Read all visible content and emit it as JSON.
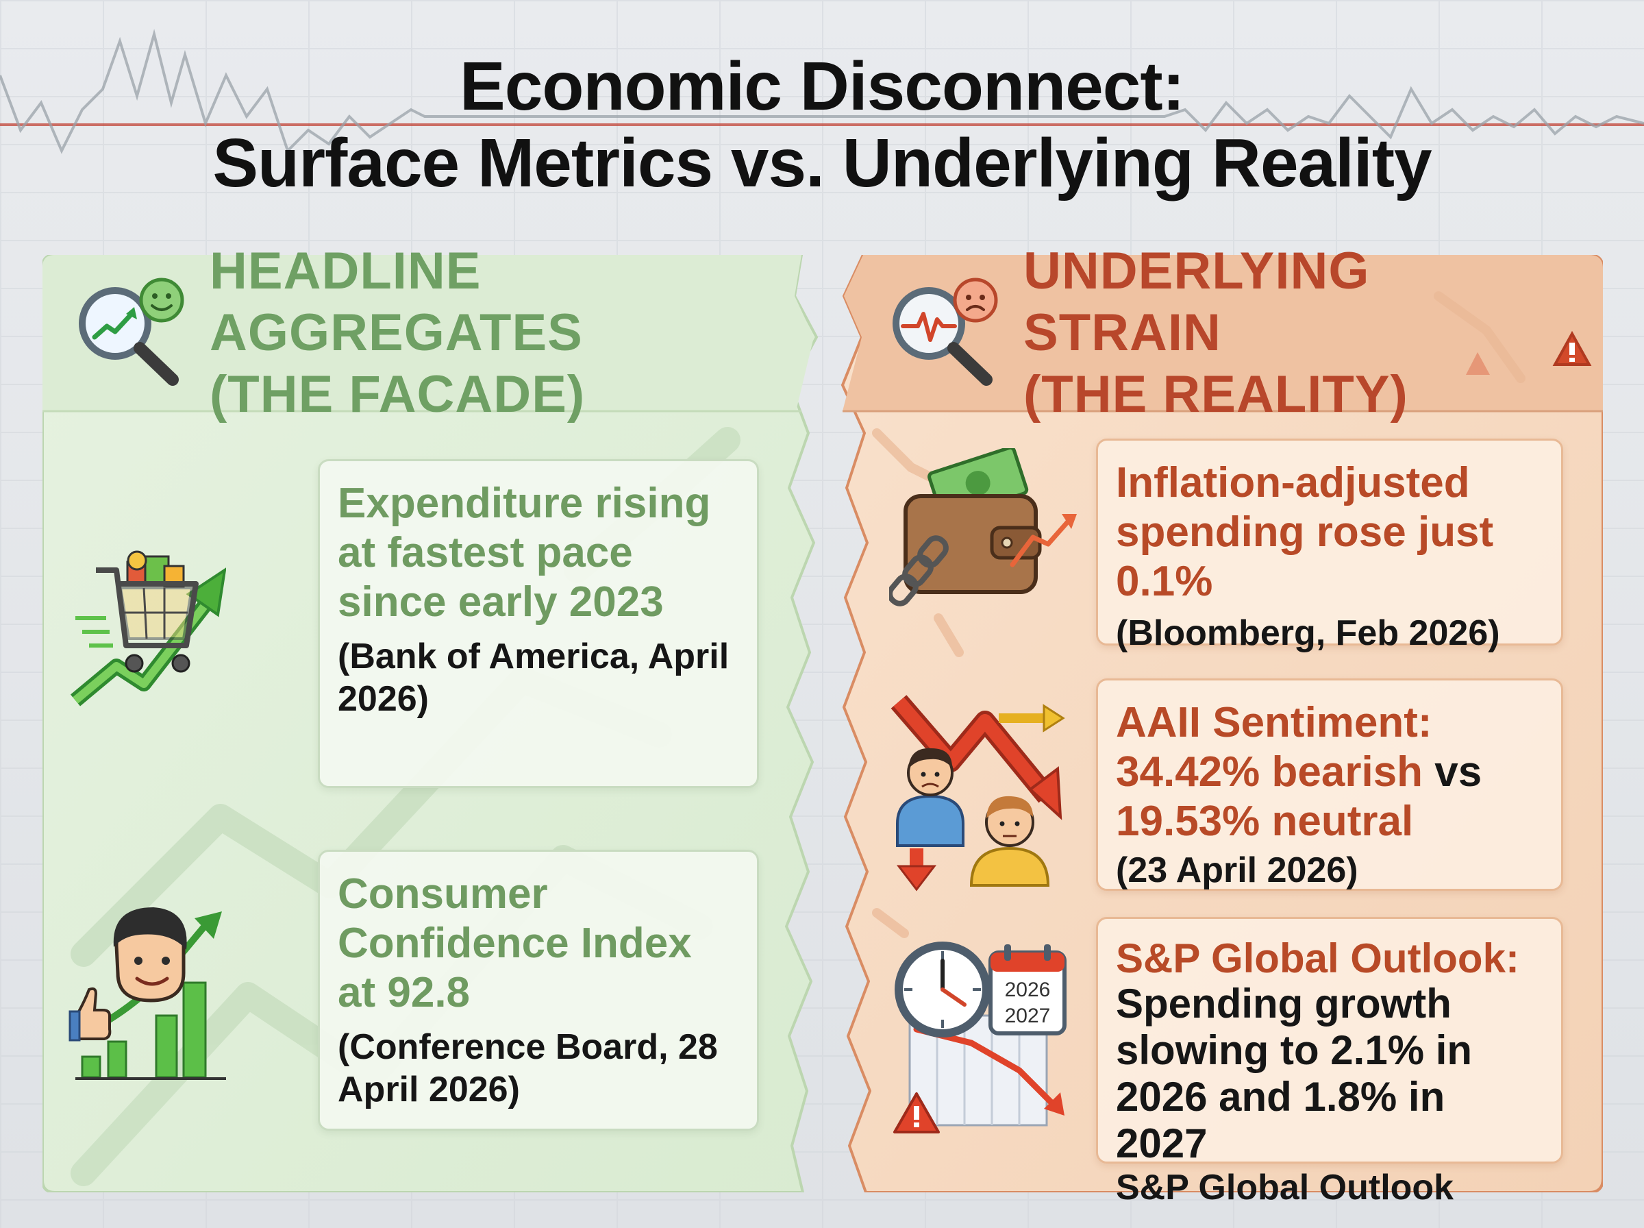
{
  "title": {
    "line1": "Economic Disconnect:",
    "line2": "Surface Metrics vs. Underlying Reality"
  },
  "colors": {
    "green_accent": "#6fa064",
    "orange_accent": "#b8472b",
    "green_panel": "#eaf4e4",
    "orange_panel": "#f7dcc6"
  },
  "left_panel": {
    "heading_line1": "HEADLINE AGGREGATES",
    "heading_line2": "(THE FACADE)",
    "header_icon": "magnifier-chart-smiley-icon",
    "items": [
      {
        "icon": "shopping-cart-rising-arrow-icon",
        "title": "Expenditure rising at fastest pace since early 2023",
        "source": "(Bank of America, April 2026)"
      },
      {
        "icon": "happy-person-bar-chart-icon",
        "title": "Consumer Confidence Index at 92.8",
        "source": "(Conference Board, 28 April 2026)"
      }
    ]
  },
  "right_panel": {
    "heading_line1": "UNDERLYING STRAIN",
    "heading_line2": "(THE REALITY)",
    "header_icon": "magnifier-pulse-sad-icon",
    "items": [
      {
        "icon": "wallet-chain-cash-icon",
        "title": "Inflation-adjusted spending rose just 0.1%",
        "source": "(Bloomberg, Feb 2026)"
      },
      {
        "icon": "worried-people-down-arrow-icon",
        "title_line1": "AAII Sentiment:",
        "bearish": "34.42% bearish",
        "vs": " vs",
        "neutral": "19.53% neutral",
        "source": "(23 April 2026)"
      },
      {
        "icon": "clock-calendar-decline-icon",
        "title": "S&P Global Outlook:",
        "body": "Spending growth slowing to 2.1% in 2026 and 1.8% in 2027",
        "source": "S&P Global Outlook",
        "calendar_years": [
          "2026",
          "2027"
        ]
      }
    ]
  }
}
